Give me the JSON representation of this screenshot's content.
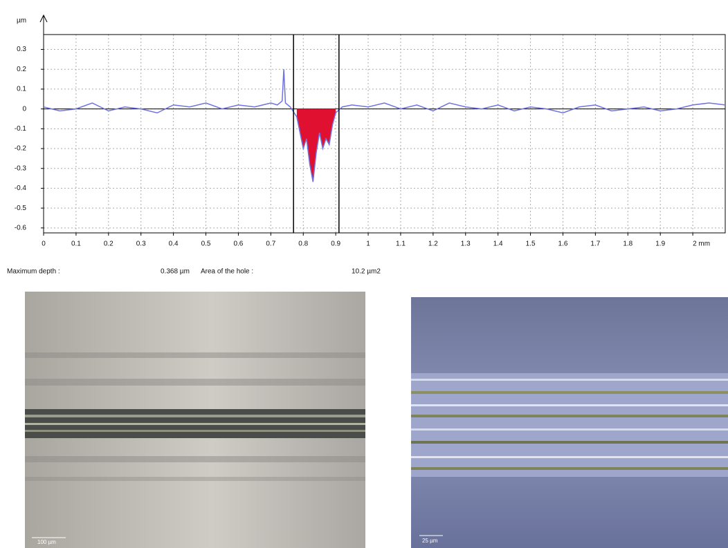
{
  "chart_data": {
    "type": "line",
    "y_label": "µm",
    "x": [
      0,
      0.05,
      0.1,
      0.15,
      0.2,
      0.25,
      0.3,
      0.35,
      0.4,
      0.45,
      0.5,
      0.55,
      0.6,
      0.65,
      0.7,
      0.72,
      0.735,
      0.74,
      0.745,
      0.76,
      0.78,
      0.79,
      0.8,
      0.81,
      0.82,
      0.83,
      0.84,
      0.85,
      0.86,
      0.87,
      0.88,
      0.89,
      0.9,
      0.92,
      0.95,
      1.0,
      1.05,
      1.1,
      1.15,
      1.2,
      1.25,
      1.3,
      1.35,
      1.4,
      1.45,
      1.5,
      1.55,
      1.6,
      1.65,
      1.7,
      1.75,
      1.8,
      1.85,
      1.9,
      1.95,
      2.0,
      2.05,
      2.1
    ],
    "series": [
      {
        "color": "#6f72e0",
        "values": [
          0.01,
          -0.01,
          0.0,
          0.03,
          -0.01,
          0.01,
          0.0,
          -0.02,
          0.02,
          0.01,
          0.03,
          0.0,
          0.02,
          0.01,
          0.03,
          0.02,
          0.04,
          0.2,
          0.03,
          0.01,
          -0.04,
          -0.12,
          -0.2,
          -0.15,
          -0.28,
          -0.368,
          -0.22,
          -0.12,
          -0.2,
          -0.15,
          -0.18,
          -0.08,
          -0.02,
          0.01,
          0.02,
          0.01,
          0.03,
          0.0,
          0.02,
          -0.01,
          0.03,
          0.01,
          0.0,
          0.02,
          -0.01,
          0.01,
          0.0,
          -0.02,
          0.01,
          0.02,
          -0.01,
          0.0,
          0.01,
          -0.01,
          0.0,
          0.02,
          0.03,
          0.02
        ]
      }
    ],
    "xlim": [
      0,
      2.1
    ],
    "ylim": [
      -0.625,
      0.375
    ],
    "xticks": [
      0,
      0.1,
      0.2,
      0.3,
      0.4,
      0.5,
      0.6,
      0.7,
      0.8,
      0.9,
      1,
      1.1,
      1.2,
      1.3,
      1.4,
      1.5,
      1.6,
      1.7,
      1.8,
      1.9,
      {
        "value": 2,
        "label": "2 mm"
      }
    ],
    "yticks": [
      0.3,
      0.2,
      0.1,
      0,
      -0.1,
      -0.2,
      -0.3,
      -0.4,
      -0.5,
      -0.6
    ],
    "grid": true,
    "cursors": [
      0.77,
      0.91
    ],
    "hole_color": "#e01030",
    "annotations": [
      "Maximum depth :",
      "0.368 µm",
      "Area of the hole :",
      "10.2 µm2"
    ]
  },
  "images": [
    {
      "scale_label": "100 µm"
    },
    {
      "scale_label": "25 µm"
    }
  ]
}
